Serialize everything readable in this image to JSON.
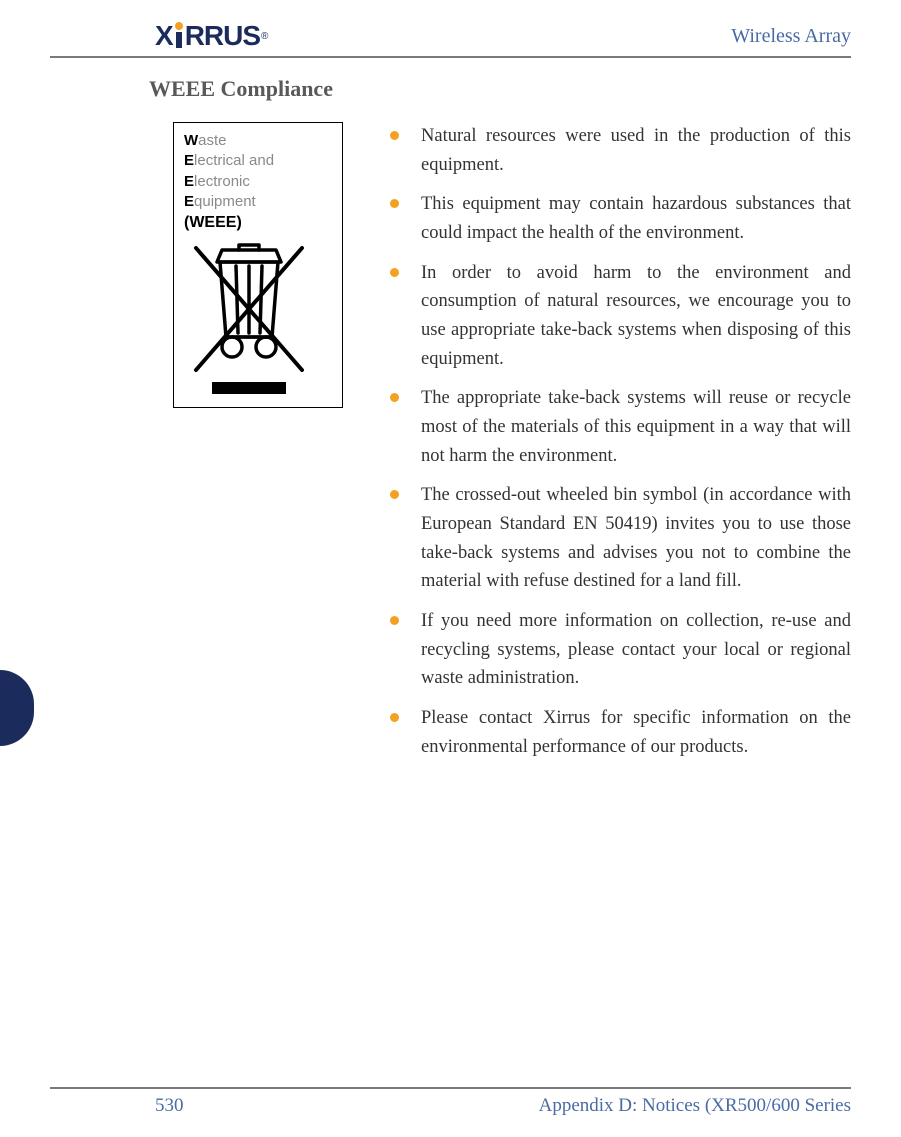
{
  "header": {
    "right_text": "Wireless Array",
    "logo_text_1": "X",
    "logo_text_2": "RRUS"
  },
  "section_title": "WEEE Compliance",
  "weee_box": {
    "lines": [
      {
        "initial": "W",
        "rest": "aste"
      },
      {
        "initial": "E",
        "rest": "lectrical and"
      },
      {
        "initial": "E",
        "rest": "lectronic"
      },
      {
        "initial": "E",
        "rest": "quipment"
      }
    ],
    "bold": "(WEEE)"
  },
  "bullets": [
    "Natural resources were used in the production of this equipment.",
    "This equipment may contain hazardous substances that could impact the health of the environment.",
    "In order to avoid harm to the environment and consumption of natural resources, we encourage you to use appropriate take-back systems when disposing of this equipment.",
    "The appropriate take-back systems will reuse or recycle most of the materials of this equipment in a way that will not harm the environment.",
    "The crossed-out wheeled bin symbol (in accordance with European Standard EN 50419) invites you to use those take-back systems and advises you not to combine the material with refuse destined for a land fill.",
    "If you need more information on collection, re-use and recycling systems, please contact your local or regional waste administration.",
    "Please contact Xirrus for specific information on the environmental performance of our products."
  ],
  "footer": {
    "page_number": "530",
    "appendix": "Appendix D: Notices (XR500/600 Series"
  },
  "colors": {
    "bullet": "#f4a020",
    "link": "#4a6aa5",
    "title": "#595959",
    "logo_navy": "#1a2b5c"
  }
}
